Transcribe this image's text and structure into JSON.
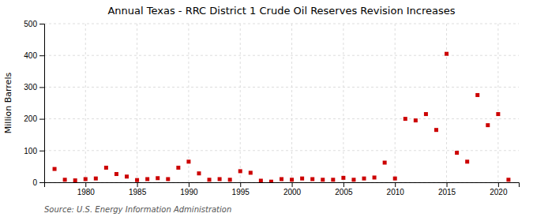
{
  "chart_data": {
    "type": "scatter",
    "title": "Annual Texas - RRC District 1 Crude Oil Reserves Revision Increases",
    "ylabel": "Million Barrels",
    "annotations": [
      "Source: U.S. Energy Information Administration"
    ],
    "x": [
      1977,
      1978,
      1979,
      1980,
      1981,
      1982,
      1983,
      1984,
      1985,
      1986,
      1987,
      1988,
      1989,
      1990,
      1991,
      1992,
      1993,
      1994,
      1995,
      1996,
      1997,
      1998,
      1999,
      2000,
      2001,
      2002,
      2003,
      2004,
      2005,
      2006,
      2007,
      2008,
      2009,
      2010,
      2011,
      2012,
      2013,
      2014,
      2015,
      2016,
      2017,
      2018,
      2019,
      2020,
      2021
    ],
    "values": [
      42,
      8,
      6,
      10,
      12,
      46,
      26,
      18,
      7,
      10,
      13,
      10,
      46,
      65,
      28,
      8,
      10,
      8,
      35,
      30,
      5,
      2,
      10,
      8,
      12,
      10,
      8,
      8,
      14,
      8,
      12,
      15,
      62,
      12,
      200,
      195,
      215,
      165,
      405,
      93,
      65,
      275,
      180,
      215,
      8
    ],
    "color": "#cc0000",
    "marker": "square",
    "xlim": [
      1976,
      2022
    ],
    "xticks": [
      1980,
      1985,
      1990,
      1995,
      2000,
      2005,
      2010,
      2015,
      2020
    ],
    "ylim": [
      0,
      500
    ],
    "yticks": [
      0,
      100,
      200,
      300,
      400,
      500
    ],
    "grid": true
  }
}
